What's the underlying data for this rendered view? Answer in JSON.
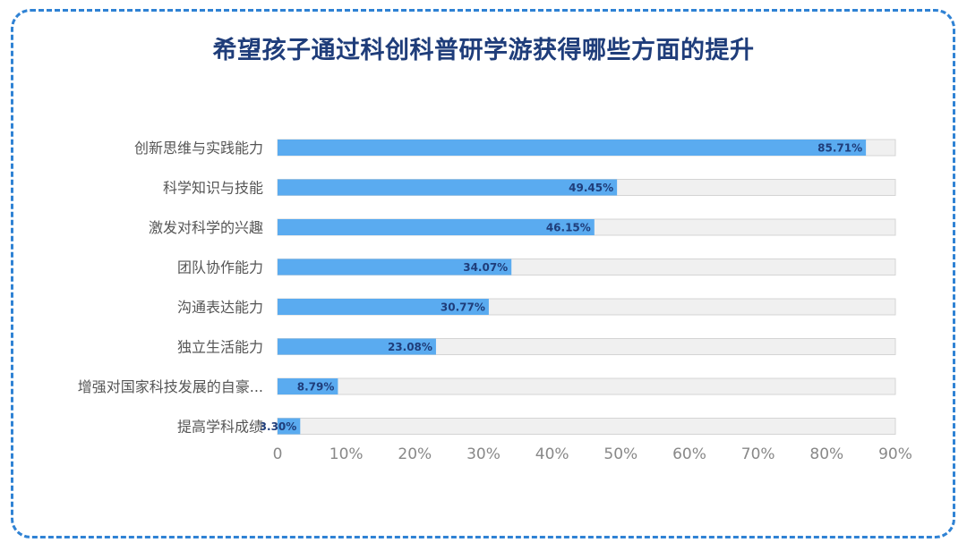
{
  "chart_data": {
    "type": "bar",
    "orientation": "horizontal",
    "title": "希望孩子通过科创科普研学游获得哪些方面的提升",
    "categories": [
      "创新思维与实践能力",
      "科学知识与技能",
      "激发对科学的兴趣",
      "团队协作能力",
      "沟通表达能力",
      "独立生活能力",
      "增强对国家科技发展的自豪...",
      "提高学科成绩"
    ],
    "values": [
      85.71,
      49.45,
      46.15,
      34.07,
      30.77,
      23.08,
      8.79,
      3.3
    ],
    "value_labels": [
      "85.71%",
      "49.45%",
      "46.15%",
      "34.07%",
      "30.77%",
      "23.08%",
      "8.79%",
      "3.30%"
    ],
    "xlim": [
      0,
      90
    ],
    "x_ticks": [
      "0",
      "10%",
      "20%",
      "30%",
      "40%",
      "50%",
      "60%",
      "70%",
      "80%",
      "90%"
    ],
    "grid": false,
    "colors": {
      "bar": "#5aabf0",
      "track": "#f0f0f0",
      "track_border": "#d4d4d4",
      "value_label": "#1f3d7a",
      "category_label": "#555555",
      "tick_label": "#888888",
      "title": "#1f3d7a",
      "frame": "#2f82d4"
    }
  }
}
